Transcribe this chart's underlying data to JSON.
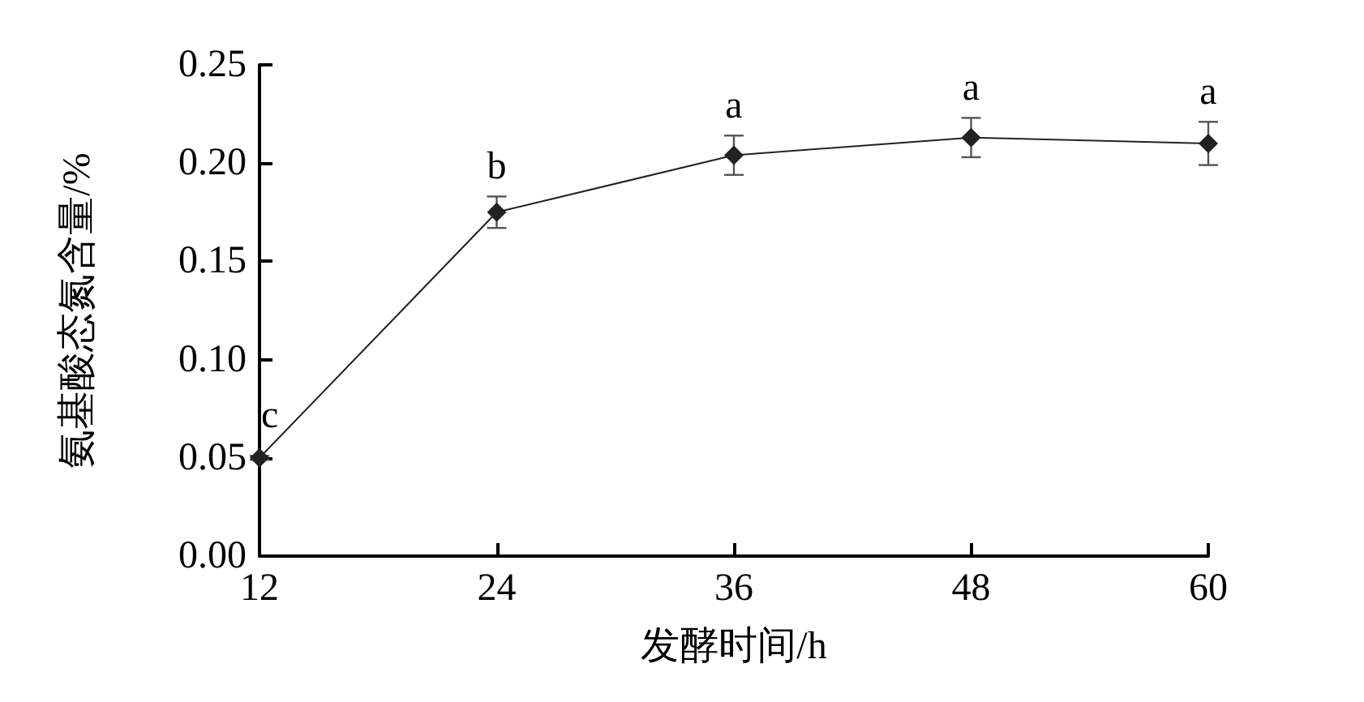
{
  "chart_data": {
    "type": "line",
    "xlabel": "发酵时间/h",
    "ylabel": "氨基酸态氮含量/%",
    "x": [
      12,
      24,
      36,
      48,
      60
    ],
    "series": [
      {
        "color": "#222222",
        "values": [
          0.05,
          0.175,
          0.204,
          0.213,
          0.21
        ],
        "errors": [
          0.001,
          0.008,
          0.01,
          0.01,
          0.011
        ]
      }
    ],
    "annotations": [
      {
        "text": "c",
        "x": 12,
        "y": 0.05
      },
      {
        "text": "b",
        "x": 24,
        "y": 0.175
      },
      {
        "text": "a",
        "x": 36,
        "y": 0.204
      },
      {
        "text": "a",
        "x": 48,
        "y": 0.213
      },
      {
        "text": "a",
        "x": 60,
        "y": 0.21
      }
    ],
    "xlim": [
      12,
      60
    ],
    "xticks": [
      12,
      24,
      36,
      48,
      60
    ],
    "ylim": [
      0,
      0.25
    ],
    "yticks": [
      {
        "value": 0,
        "label": "0.00"
      },
      0.05,
      {
        "value": 0.1,
        "label": "0.10"
      },
      0.15,
      {
        "value": 0.2,
        "label": "0.20"
      },
      0.25
    ],
    "grid": false,
    "marker": "diamond",
    "line_style": "solid"
  }
}
